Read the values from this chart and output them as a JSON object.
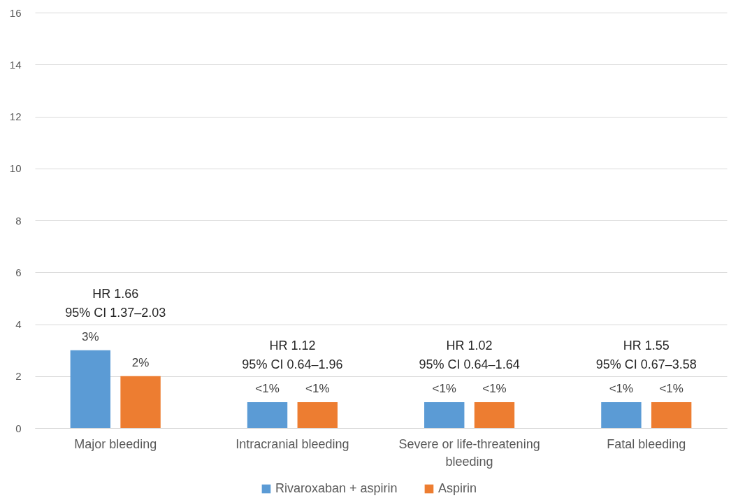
{
  "chart_data": {
    "type": "bar",
    "categories": [
      "Major bleeding",
      "Intracranial bleeding",
      "Severe or life-threatening bleeding",
      "Fatal bleeding"
    ],
    "series": [
      {
        "name": "Rivaroxaban + aspirin",
        "color": "#5b9bd5",
        "values": [
          3,
          1,
          1,
          1
        ],
        "value_labels": [
          "3%",
          "<1%",
          "<1%",
          "<1%"
        ]
      },
      {
        "name": "Aspirin",
        "color": "#ed7d31",
        "values": [
          2,
          1,
          1,
          1
        ],
        "value_labels": [
          "2%",
          "<1%",
          "<1%",
          "<1%"
        ]
      }
    ],
    "ylim": [
      0,
      16
    ],
    "yticks": [
      0,
      2,
      4,
      6,
      8,
      10,
      12,
      14,
      16
    ],
    "grid": true,
    "legend": "bottom",
    "annotations": [
      "HR 1.66\n95% CI 1.37–2.03",
      "HR 1.12\n95% CI 0.64–1.96",
      "HR 1.02\n95% CI 0.64–1.64",
      "HR 1.55\n95% CI 0.67–3.58"
    ]
  }
}
